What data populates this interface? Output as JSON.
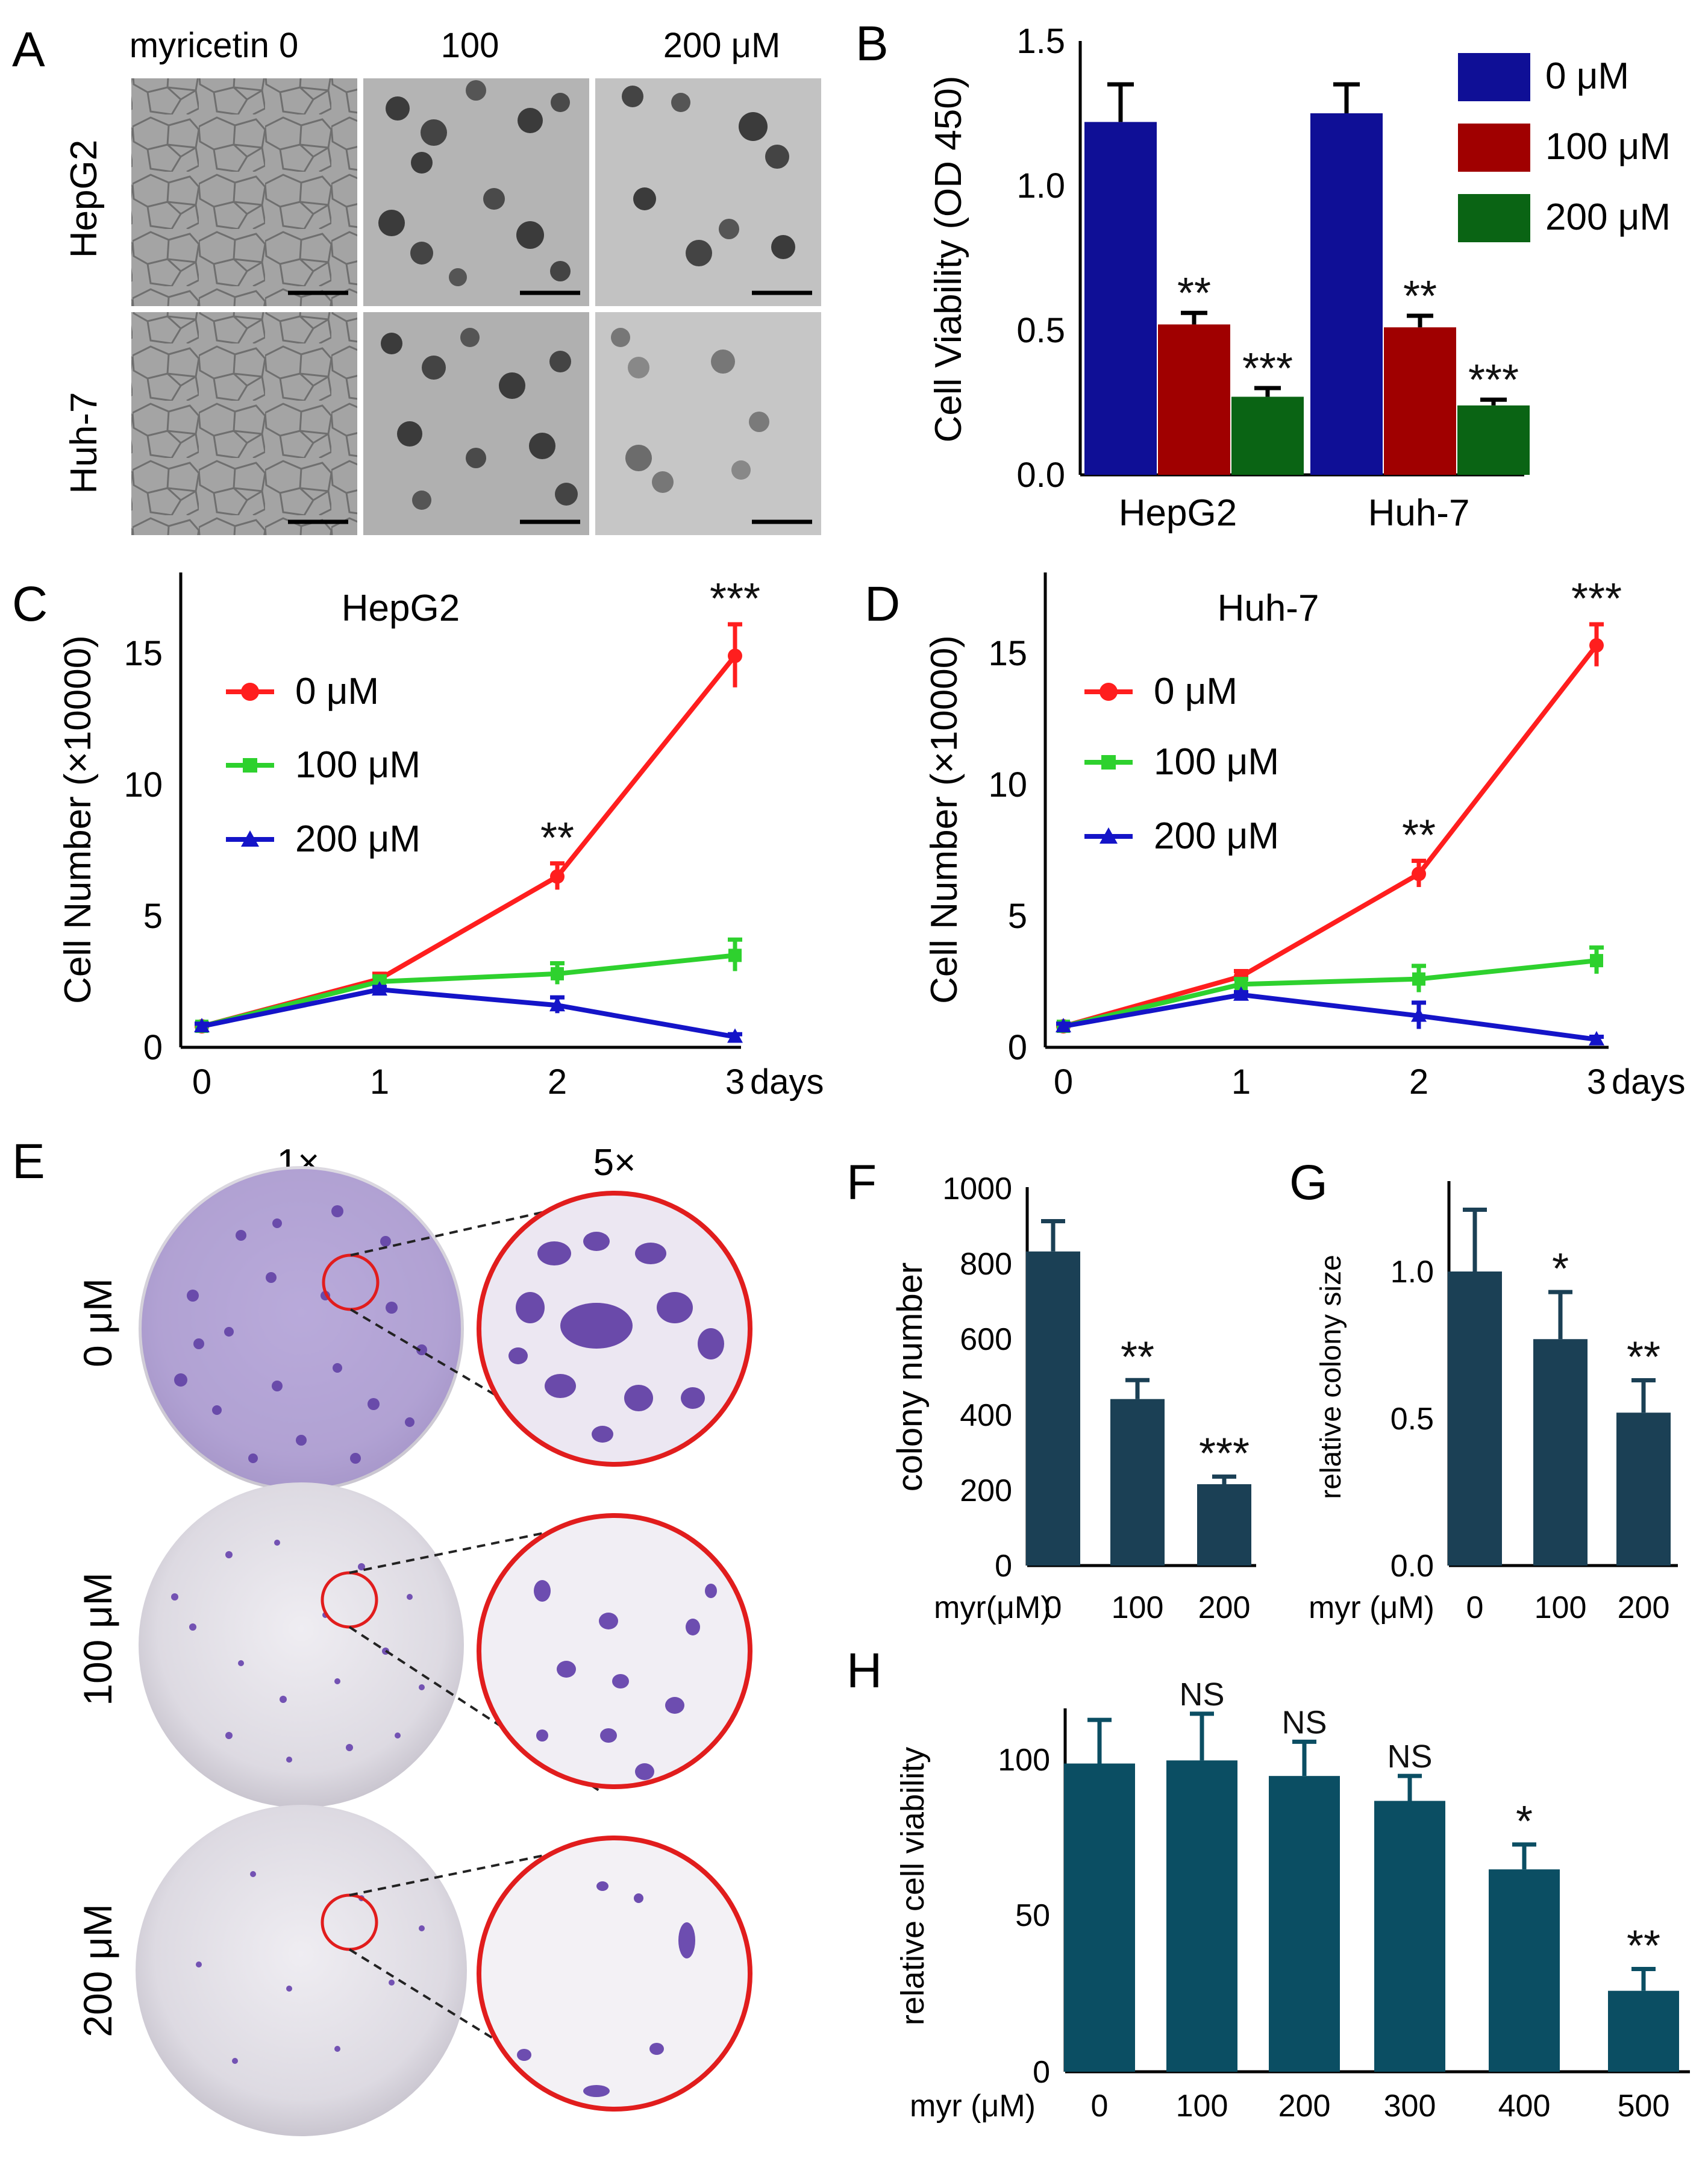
{
  "colors": {
    "blue": "#0f0f96",
    "red": "#a00000",
    "green": "#0a6414",
    "line_red": "#ff1e1e",
    "line_green": "#2ed12e",
    "line_blue": "#1414c8",
    "dark_bar": "#1b4055",
    "teal_bar": "#0b4e63",
    "crystal_violet": "#6a4aaa",
    "zoom_ring": "#e11d1d"
  },
  "panels": {
    "A": {
      "letter": "A",
      "columns": [
        "myricetin 0",
        "100",
        "200 μM"
      ],
      "rows": [
        "HepG2",
        "Huh-7"
      ]
    },
    "E": {
      "letter": "E",
      "columns": [
        "1×",
        "5×"
      ],
      "rows": [
        "0 μM",
        "100 μM",
        "200 μM"
      ]
    }
  },
  "chart_data": [
    {
      "panel": "B",
      "type": "bar",
      "ylabel": "Cell Viability (OD 450)",
      "categories": [
        "HepG2",
        "Huh-7"
      ],
      "series": [
        {
          "name": "0 μM",
          "values": [
            1.22,
            1.25
          ],
          "errors": [
            0.13,
            0.1
          ]
        },
        {
          "name": "100 μM",
          "values": [
            0.52,
            0.51
          ],
          "errors": [
            0.04,
            0.04
          ]
        },
        {
          "name": "200 μM",
          "values": [
            0.27,
            0.24
          ],
          "errors": [
            0.03,
            0.02
          ]
        }
      ],
      "significance": [
        [
          "",
          "**",
          "***"
        ],
        [
          "",
          "**",
          "***"
        ]
      ],
      "ylim": [
        0,
        1.5
      ],
      "yticks": [
        "0.0",
        "0.5",
        "1.0",
        "1.5"
      ],
      "legend": [
        "0 μM",
        "100 μM",
        "200 μM"
      ]
    },
    {
      "panel": "C",
      "type": "line",
      "title": "HepG2",
      "ylabel": "Cell Number (×10000)",
      "x": [
        0,
        1,
        2,
        3
      ],
      "xticks": [
        "0",
        "1",
        "2",
        "3"
      ],
      "xunit": "days",
      "yticks": [
        "0",
        "5",
        "10",
        "15"
      ],
      "ylim": [
        0,
        17.5
      ],
      "series": [
        {
          "name": "0 μM",
          "values": [
            0.8,
            2.6,
            6.5,
            14.9
          ],
          "errors": [
            0.1,
            0.2,
            0.5,
            1.2
          ]
        },
        {
          "name": "100 μM",
          "values": [
            0.8,
            2.5,
            2.8,
            3.5
          ],
          "errors": [
            0.1,
            0.2,
            0.4,
            0.6
          ]
        },
        {
          "name": "200 μM",
          "values": [
            0.8,
            2.2,
            1.6,
            0.4
          ],
          "errors": [
            0.1,
            0.1,
            0.3,
            0.1
          ]
        }
      ],
      "annotations": [
        {
          "x": 2,
          "text": "**"
        },
        {
          "x": 3,
          "text": "***"
        }
      ],
      "legend": [
        "0 μM",
        "100 μM",
        "200 μM"
      ]
    },
    {
      "panel": "D",
      "type": "line",
      "title": "Huh-7",
      "ylabel": "Cell Number (×10000)",
      "x": [
        0,
        1,
        2,
        3
      ],
      "xticks": [
        "0",
        "1",
        "2",
        "3"
      ],
      "xunit": "days",
      "yticks": [
        "0",
        "5",
        "10",
        "15"
      ],
      "ylim": [
        0,
        17.5
      ],
      "series": [
        {
          "name": "0 μM",
          "values": [
            0.8,
            2.7,
            6.6,
            15.3
          ],
          "errors": [
            0.1,
            0.2,
            0.5,
            0.8
          ]
        },
        {
          "name": "100 μM",
          "values": [
            0.8,
            2.4,
            2.6,
            3.3
          ],
          "errors": [
            0.1,
            0.2,
            0.5,
            0.5
          ]
        },
        {
          "name": "200 μM",
          "values": [
            0.8,
            2.0,
            1.2,
            0.3
          ],
          "errors": [
            0.1,
            0.1,
            0.5,
            0.1
          ]
        }
      ],
      "annotations": [
        {
          "x": 2,
          "text": "**"
        },
        {
          "x": 3,
          "text": "***"
        }
      ],
      "legend": [
        "0 μM",
        "100 μM",
        "200 μM"
      ]
    },
    {
      "panel": "F",
      "type": "bar",
      "ylabel": "colony number",
      "xlabel": "myr(μM)",
      "categories": [
        "0",
        "100",
        "200"
      ],
      "values": [
        830,
        440,
        215
      ],
      "errors": [
        80,
        50,
        20
      ],
      "significance": [
        "",
        "**",
        "***"
      ],
      "ylim": [
        0,
        1000
      ],
      "yticks": [
        "0",
        "200",
        "400",
        "600",
        "800",
        "1000"
      ]
    },
    {
      "panel": "G",
      "type": "bar",
      "ylabel": "relative colony size",
      "xlabel": "myr (μM)",
      "categories": [
        "0",
        "100",
        "200"
      ],
      "values": [
        1.0,
        0.77,
        0.52
      ],
      "errors": [
        0.21,
        0.16,
        0.11
      ],
      "significance": [
        "",
        "*",
        "**"
      ],
      "ylim": [
        0,
        1.25
      ],
      "yticks": [
        "0.0",
        "0.5",
        "1.0"
      ]
    },
    {
      "panel": "H",
      "type": "bar",
      "ylabel": "relative cell viability",
      "xlabel": "myr (μM)",
      "categories": [
        "0",
        "100",
        "200",
        "300",
        "400",
        "500"
      ],
      "values": [
        99,
        100,
        95,
        87,
        65,
        26
      ],
      "errors": [
        14,
        15,
        11,
        8,
        8,
        7
      ],
      "significance": [
        "",
        "NS",
        "NS",
        "NS",
        "*",
        "**"
      ],
      "ylim": [
        0,
        120
      ],
      "yticks": [
        "0",
        "50",
        "100"
      ]
    }
  ]
}
